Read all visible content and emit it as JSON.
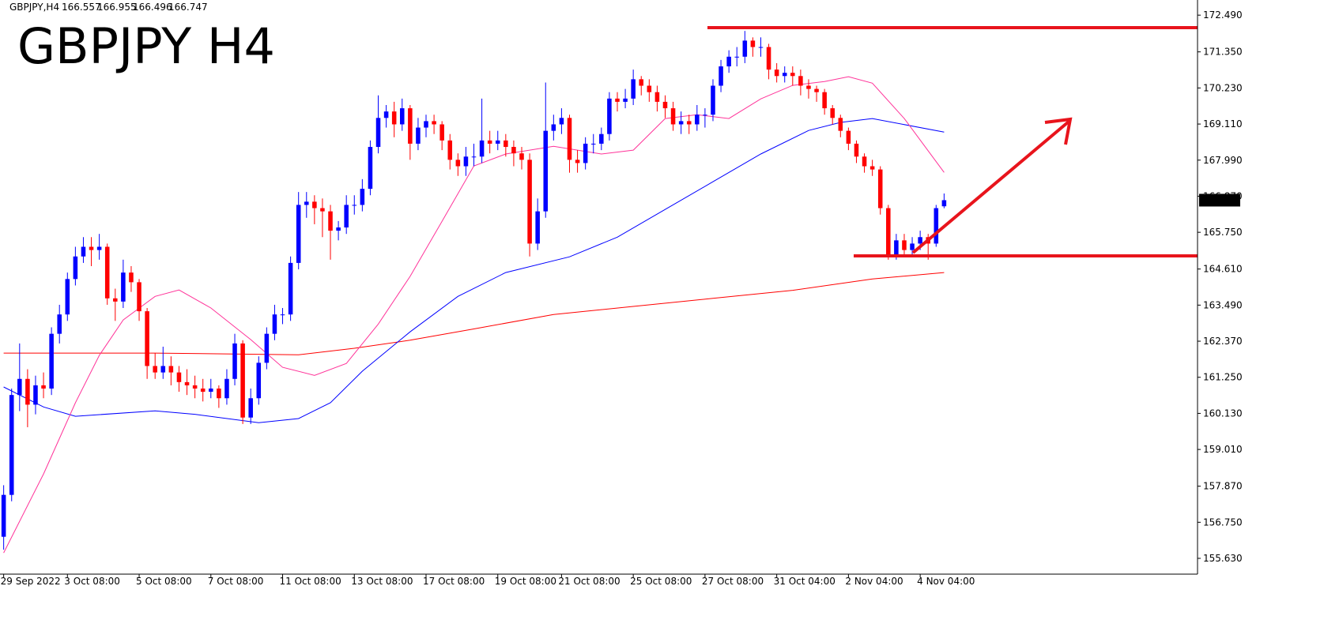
{
  "chart_data": {
    "type": "candlestick",
    "title": "GBPJPY H4",
    "symbol_label": "GBPJPY,H4",
    "up_color": "#0000ff",
    "down_color": "#ff0000",
    "title_color": "#ff0000",
    "grid": false,
    "ylim": [
      155.14,
      172.96
    ],
    "yticks": [
      {
        "value": 172.49,
        "label": "172.490"
      },
      {
        "value": 171.35,
        "label": "171.350"
      },
      {
        "value": 170.23,
        "label": "170.230"
      },
      {
        "value": 169.11,
        "label": "169.110"
      },
      {
        "value": 167.99,
        "label": "167.990"
      },
      {
        "value": 166.87,
        "label": "166.870"
      },
      {
        "value": 165.75,
        "label": "165.750"
      },
      {
        "value": 164.61,
        "label": "164.610"
      },
      {
        "value": 163.49,
        "label": "163.490"
      },
      {
        "value": 162.37,
        "label": "162.370"
      },
      {
        "value": 161.25,
        "label": "161.250"
      },
      {
        "value": 160.13,
        "label": "160.130"
      },
      {
        "value": 159.01,
        "label": "159.010"
      },
      {
        "value": 157.87,
        "label": "157.870"
      },
      {
        "value": 156.75,
        "label": "156.750"
      },
      {
        "value": 155.63,
        "label": "155.630"
      }
    ],
    "xlim": [
      -0.46,
      149.8
    ],
    "xticks": [
      {
        "value": 0,
        "label": "29 Sep 2022"
      },
      {
        "value": 8,
        "label": "3 Oct 08:00"
      },
      {
        "value": 17,
        "label": "5 Oct 08:00"
      },
      {
        "value": 26,
        "label": "7 Oct 08:00"
      },
      {
        "value": 35,
        "label": "11 Oct 08:00"
      },
      {
        "value": 44,
        "label": "13 Oct 08:00"
      },
      {
        "value": 53,
        "label": "17 Oct 08:00"
      },
      {
        "value": 62,
        "label": "19 Oct 08:00"
      },
      {
        "value": 70,
        "label": "21 Oct 08:00"
      },
      {
        "value": 79,
        "label": "25 Oct 08:00"
      },
      {
        "value": 88,
        "label": "27 Oct 08:00"
      },
      {
        "value": 97,
        "label": "31 Oct 04:00"
      },
      {
        "value": 106,
        "label": "2 Nov 04:00"
      },
      {
        "value": 115,
        "label": "4 Nov 04:00"
      }
    ],
    "candles": [
      [
        156.3,
        157.9,
        155.9,
        157.6
      ],
      [
        157.6,
        160.9,
        157.4,
        160.7
      ],
      [
        160.7,
        162.3,
        160.2,
        161.2
      ],
      [
        161.2,
        161.5,
        159.7,
        160.4
      ],
      [
        160.4,
        161.3,
        160.1,
        161.0
      ],
      [
        161.0,
        161.4,
        160.6,
        160.9
      ],
      [
        160.9,
        162.8,
        160.7,
        162.6
      ],
      [
        162.6,
        163.5,
        162.3,
        163.2
      ],
      [
        163.2,
        164.5,
        163.0,
        164.3
      ],
      [
        164.3,
        165.3,
        164.1,
        165.0
      ],
      [
        165.0,
        165.6,
        164.8,
        165.3
      ],
      [
        165.3,
        165.6,
        164.7,
        165.2
      ],
      [
        165.2,
        165.7,
        164.9,
        165.3
      ],
      [
        165.3,
        165.4,
        163.5,
        163.7
      ],
      [
        163.7,
        164.0,
        163.0,
        163.6
      ],
      [
        163.6,
        164.9,
        163.4,
        164.5
      ],
      [
        164.5,
        164.7,
        163.9,
        164.2
      ],
      [
        164.2,
        164.3,
        163.0,
        163.3
      ],
      [
        163.3,
        163.4,
        161.2,
        161.6
      ],
      [
        161.6,
        162.0,
        161.2,
        161.4
      ],
      [
        161.4,
        162.2,
        161.2,
        161.6
      ],
      [
        161.6,
        161.9,
        161.0,
        161.4
      ],
      [
        161.4,
        161.6,
        160.8,
        161.1
      ],
      [
        161.1,
        161.5,
        160.7,
        161.0
      ],
      [
        161.0,
        161.3,
        160.6,
        160.9
      ],
      [
        160.9,
        161.2,
        160.5,
        160.8
      ],
      [
        160.8,
        161.2,
        160.6,
        160.9
      ],
      [
        160.9,
        161.0,
        160.3,
        160.6
      ],
      [
        160.6,
        161.5,
        160.4,
        161.2
      ],
      [
        161.2,
        162.6,
        161.0,
        162.3
      ],
      [
        162.3,
        162.4,
        159.8,
        160.0
      ],
      [
        160.0,
        160.9,
        159.8,
        160.6
      ],
      [
        160.6,
        161.9,
        160.4,
        161.7
      ],
      [
        161.7,
        162.8,
        161.5,
        162.6
      ],
      [
        162.6,
        163.5,
        162.4,
        163.2
      ],
      [
        163.2,
        163.4,
        162.9,
        163.2
      ],
      [
        163.2,
        165.0,
        163.0,
        164.8
      ],
      [
        164.8,
        167.0,
        164.6,
        166.6
      ],
      [
        166.6,
        167.0,
        166.2,
        166.7
      ],
      [
        166.7,
        166.9,
        166.0,
        166.5
      ],
      [
        166.5,
        166.8,
        165.6,
        166.4
      ],
      [
        166.4,
        166.6,
        164.9,
        165.8
      ],
      [
        165.8,
        166.1,
        165.5,
        165.9
      ],
      [
        165.9,
        166.9,
        165.7,
        166.6
      ],
      [
        166.6,
        166.9,
        166.3,
        166.6
      ],
      [
        166.6,
        167.4,
        166.4,
        167.1
      ],
      [
        167.1,
        168.6,
        166.9,
        168.4
      ],
      [
        168.4,
        170.0,
        168.2,
        169.3
      ],
      [
        169.3,
        169.7,
        169.0,
        169.5
      ],
      [
        169.5,
        169.8,
        168.7,
        169.1
      ],
      [
        169.1,
        169.9,
        168.9,
        169.6
      ],
      [
        169.6,
        169.7,
        168.0,
        168.5
      ],
      [
        168.5,
        169.3,
        168.3,
        169.0
      ],
      [
        169.0,
        169.4,
        168.7,
        169.2
      ],
      [
        169.2,
        169.4,
        168.8,
        169.1
      ],
      [
        169.1,
        169.2,
        168.3,
        168.6
      ],
      [
        168.6,
        168.8,
        167.7,
        168.0
      ],
      [
        168.0,
        168.2,
        167.5,
        167.8
      ],
      [
        167.8,
        168.4,
        167.5,
        168.1
      ],
      [
        168.1,
        168.5,
        167.8,
        168.1
      ],
      [
        168.1,
        169.9,
        167.9,
        168.6
      ],
      [
        168.6,
        168.9,
        168.2,
        168.5
      ],
      [
        168.5,
        168.9,
        168.3,
        168.6
      ],
      [
        168.6,
        168.8,
        168.1,
        168.4
      ],
      [
        168.4,
        168.6,
        167.8,
        168.2
      ],
      [
        168.2,
        168.4,
        167.7,
        168.0
      ],
      [
        168.0,
        168.2,
        165.0,
        165.4
      ],
      [
        165.4,
        166.8,
        165.2,
        166.4
      ],
      [
        166.4,
        170.4,
        166.2,
        168.9
      ],
      [
        168.9,
        169.4,
        168.6,
        169.1
      ],
      [
        169.1,
        169.6,
        168.8,
        169.3
      ],
      [
        169.3,
        169.4,
        167.6,
        168.0
      ],
      [
        168.0,
        168.3,
        167.6,
        167.9
      ],
      [
        167.9,
        168.7,
        167.7,
        168.5
      ],
      [
        168.5,
        168.8,
        168.2,
        168.5
      ],
      [
        168.5,
        169.0,
        168.3,
        168.8
      ],
      [
        168.8,
        170.1,
        168.6,
        169.9
      ],
      [
        169.9,
        170.1,
        169.5,
        169.8
      ],
      [
        169.8,
        170.2,
        169.6,
        169.9
      ],
      [
        169.9,
        170.8,
        169.7,
        170.5
      ],
      [
        170.5,
        170.6,
        170.0,
        170.3
      ],
      [
        170.3,
        170.5,
        169.8,
        170.1
      ],
      [
        170.1,
        170.3,
        169.5,
        169.8
      ],
      [
        169.8,
        170.0,
        169.3,
        169.6
      ],
      [
        169.6,
        169.8,
        168.9,
        169.1
      ],
      [
        169.1,
        169.5,
        168.8,
        169.2
      ],
      [
        169.2,
        169.4,
        168.8,
        169.1
      ],
      [
        169.1,
        169.7,
        168.9,
        169.4
      ],
      [
        169.4,
        169.6,
        169.0,
        169.4
      ],
      [
        169.4,
        170.5,
        169.2,
        170.3
      ],
      [
        170.3,
        171.1,
        170.1,
        170.9
      ],
      [
        170.9,
        171.4,
        170.7,
        171.2
      ],
      [
        171.2,
        171.5,
        170.9,
        171.2
      ],
      [
        171.2,
        172.0,
        171.0,
        171.7
      ],
      [
        171.7,
        171.8,
        171.2,
        171.5
      ],
      [
        171.5,
        171.8,
        171.2,
        171.5
      ],
      [
        171.5,
        171.6,
        170.5,
        170.8
      ],
      [
        170.8,
        171.0,
        170.4,
        170.6
      ],
      [
        170.6,
        170.9,
        170.4,
        170.7
      ],
      [
        170.7,
        170.9,
        170.3,
        170.6
      ],
      [
        170.6,
        170.8,
        170.0,
        170.3
      ],
      [
        170.3,
        170.5,
        169.9,
        170.2
      ],
      [
        170.2,
        170.3,
        169.8,
        170.1
      ],
      [
        170.1,
        170.2,
        169.4,
        169.6
      ],
      [
        169.6,
        169.7,
        169.1,
        169.3
      ],
      [
        169.3,
        169.4,
        168.7,
        168.9
      ],
      [
        168.9,
        169.0,
        168.3,
        168.5
      ],
      [
        168.5,
        168.6,
        167.9,
        168.1
      ],
      [
        168.1,
        168.2,
        167.6,
        167.8
      ],
      [
        167.8,
        168.0,
        167.5,
        167.7
      ],
      [
        167.7,
        167.8,
        166.3,
        166.5
      ],
      [
        166.5,
        166.6,
        164.9,
        165.0
      ],
      [
        165.0,
        165.7,
        164.9,
        165.5
      ],
      [
        165.5,
        165.7,
        165.0,
        165.2
      ],
      [
        165.2,
        165.6,
        165.0,
        165.4
      ],
      [
        165.4,
        165.8,
        165.2,
        165.6
      ],
      [
        165.6,
        165.7,
        164.9,
        165.4
      ],
      [
        165.4,
        166.6,
        165.3,
        166.5
      ],
      [
        166.557,
        166.955,
        166.496,
        166.747
      ]
    ],
    "lines": [
      {
        "color": "#ff0000",
        "x": [
          0,
          9,
          19,
          37,
          44,
          51,
          59,
          69,
          79,
          89,
          99,
          109,
          118
        ],
        "values": [
          162.0,
          162.0,
          162.0,
          161.95,
          162.15,
          162.4,
          162.75,
          163.2,
          163.45,
          163.7,
          163.95,
          164.3,
          164.5
        ]
      },
      {
        "color": "#0000ff",
        "x": [
          0,
          5,
          9,
          19,
          24,
          32,
          37,
          41,
          45,
          51,
          57,
          63,
          71,
          77,
          83,
          89,
          95,
          101,
          105,
          109,
          118
        ],
        "values": [
          160.95,
          160.33,
          160.04,
          160.21,
          160.1,
          159.84,
          159.97,
          160.46,
          161.44,
          162.66,
          163.76,
          164.5,
          164.99,
          165.6,
          166.46,
          167.32,
          168.18,
          168.91,
          169.16,
          169.28,
          168.86
        ]
      },
      {
        "color": "#ff3399",
        "x": [
          0,
          5,
          9,
          12,
          15,
          19,
          22,
          26,
          31,
          35,
          39,
          43,
          47,
          51,
          55,
          59,
          63,
          69,
          75,
          79,
          83,
          87,
          91,
          95,
          99,
          103,
          106,
          109,
          113,
          118
        ],
        "values": [
          155.8,
          158.25,
          160.46,
          161.93,
          163.03,
          163.76,
          163.96,
          163.4,
          162.42,
          161.56,
          161.31,
          161.68,
          162.9,
          164.38,
          166.09,
          167.81,
          168.18,
          168.42,
          168.18,
          168.3,
          169.28,
          169.4,
          169.28,
          169.89,
          170.31,
          170.43,
          170.58,
          170.38,
          169.28,
          167.61
        ]
      }
    ]
  }
}
